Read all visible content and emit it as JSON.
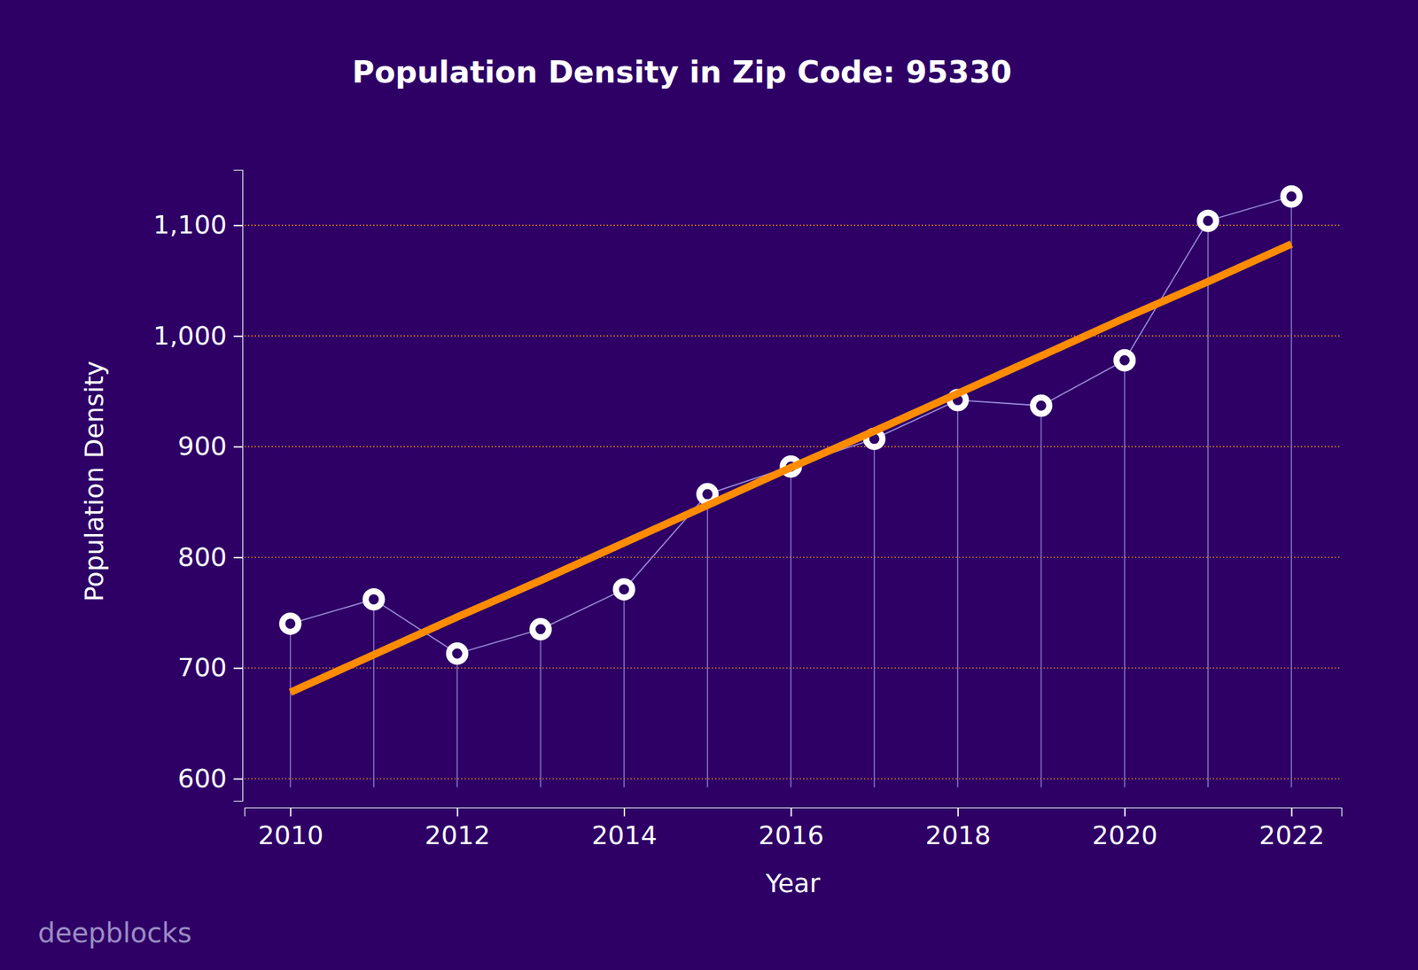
{
  "chart_data": {
    "type": "line",
    "title": "Population Density in Zip Code: 95330",
    "x_label": "Year",
    "y_label": "Population Density",
    "x": [
      2010,
      2011,
      2012,
      2013,
      2014,
      2015,
      2016,
      2017,
      2018,
      2019,
      2020,
      2021,
      2022
    ],
    "series": [
      {
        "color": "#ffffff",
        "marker": "circle",
        "line_style": "solid",
        "values": [
          740,
          762,
          713,
          735,
          771,
          857,
          882,
          907,
          942,
          937,
          978,
          1104,
          1126
        ]
      },
      {
        "color": "#ff8c00",
        "marker": "none",
        "line_style": "solid",
        "values": [
          678,
          712,
          746,
          779,
          813,
          847,
          881,
          914,
          948,
          982,
          1016,
          1049,
          1083
        ]
      }
    ],
    "xlim": [
      2009.45,
      2022.6
    ],
    "xticks": [
      2010,
      2012,
      2014,
      2016,
      2018,
      2020,
      2022
    ],
    "ylim": [
      580,
      1150
    ],
    "yticks": [
      600,
      700,
      800,
      900,
      {
        "value": 1000,
        "label": "1,000"
      },
      {
        "value": 1100,
        "label": "1,100"
      }
    ],
    "grid": true,
    "watermark": "deepblocks"
  }
}
